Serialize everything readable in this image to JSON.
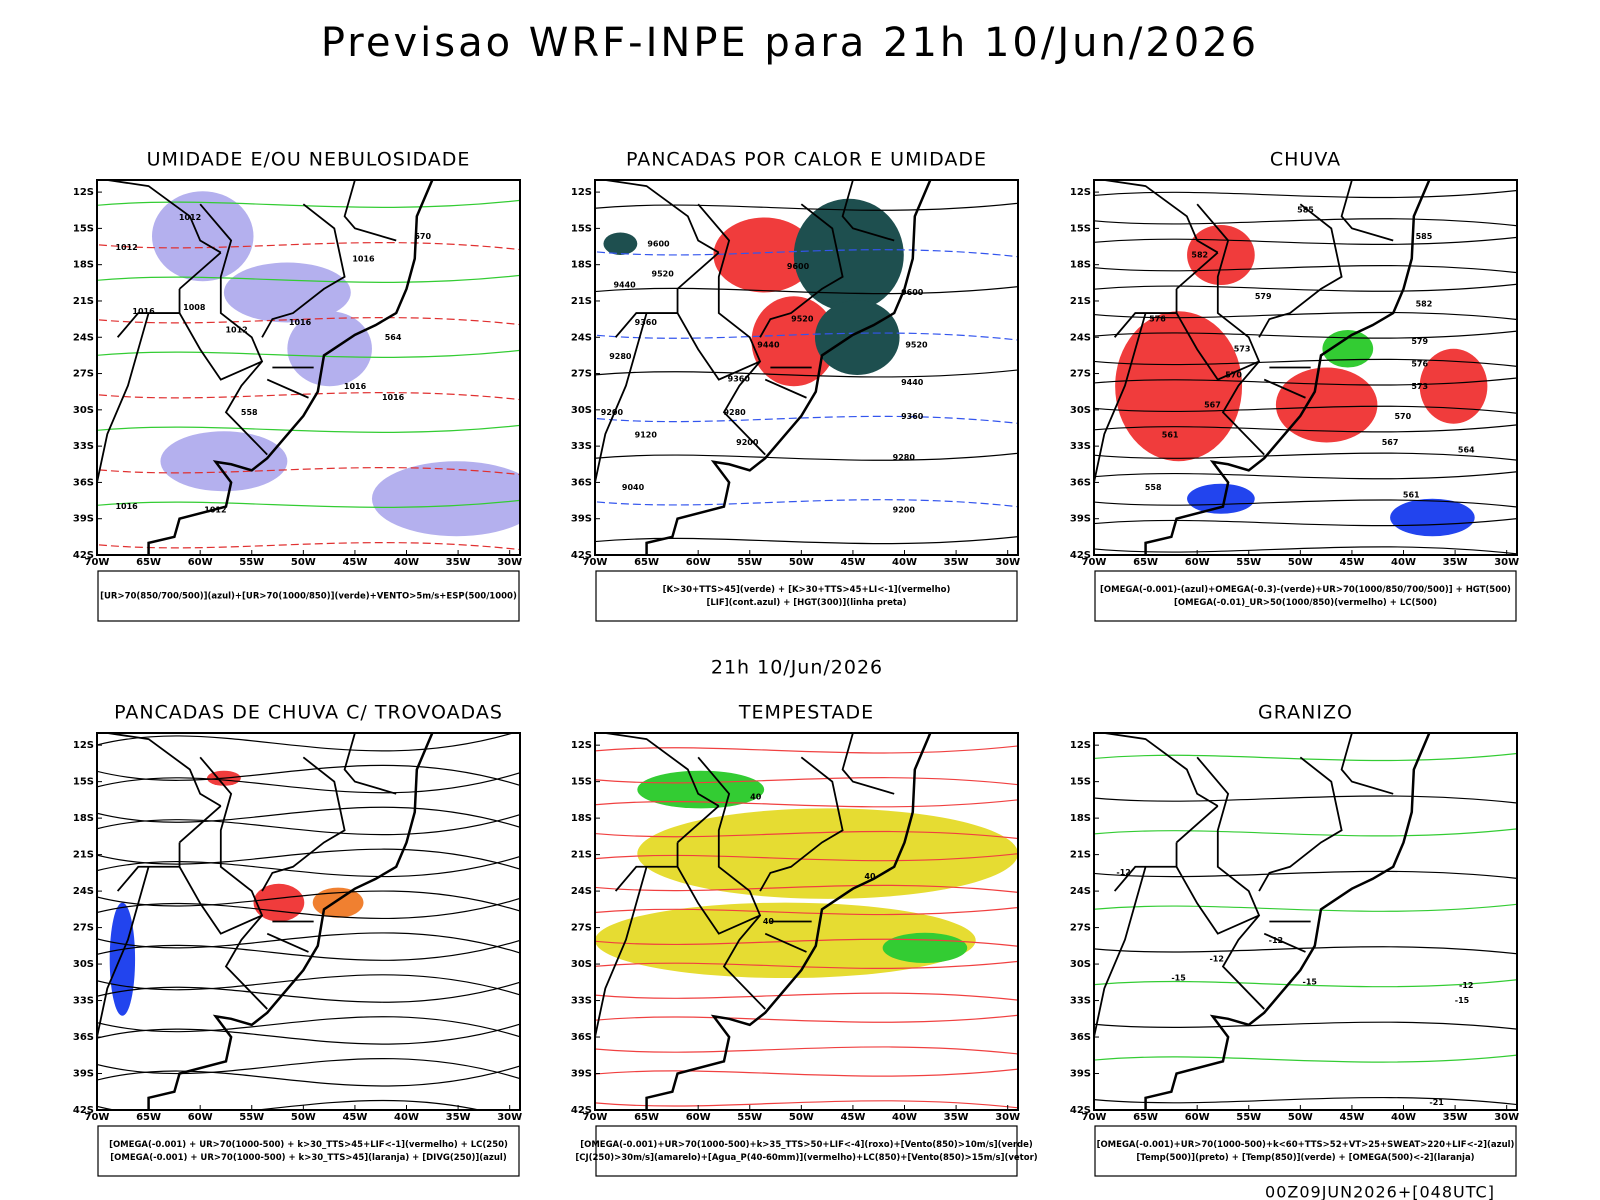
{
  "title": "Previsao WRF-INPE  para 21h 10/Jun/2026",
  "middle_label": "21h 10/Jun/2026",
  "footer": "00Z09JUN2026+[048UTC]",
  "axes": {
    "lat": [
      {
        "value": -12,
        "label": "12S"
      },
      {
        "value": -15,
        "label": "15S"
      },
      {
        "value": -18,
        "label": "18S"
      },
      {
        "value": -21,
        "label": "21S"
      },
      {
        "value": -24,
        "label": "24S"
      },
      {
        "value": -27,
        "label": "27S"
      },
      {
        "value": -30,
        "label": "30S"
      },
      {
        "value": -33,
        "label": "33S"
      },
      {
        "value": -36,
        "label": "36S"
      },
      {
        "value": -39,
        "label": "39S"
      },
      {
        "value": -42,
        "label": "42S"
      }
    ],
    "lon": [
      {
        "value": -70,
        "label": "70W"
      },
      {
        "value": -65,
        "label": "65W"
      },
      {
        "value": -60,
        "label": "60W"
      },
      {
        "value": -55,
        "label": "55W"
      },
      {
        "value": -50,
        "label": "50W"
      },
      {
        "value": -45,
        "label": "45W"
      },
      {
        "value": -40,
        "label": "40W"
      },
      {
        "value": -35,
        "label": "35W"
      },
      {
        "value": -30,
        "label": "30W"
      }
    ]
  },
  "panels": [
    {
      "title": "UMIDADE E/OU NEBULOSIDADE",
      "legend": [
        "[UR>70(850/700/500)](azul)+[UR>70(1000/850)](verde)+VENTO>5m/s+ESP(500/1000)"
      ],
      "contour_labels": [
        "1012",
        "1012",
        "1016",
        "1008",
        "1016",
        "1012",
        "1016",
        "1016",
        "1016",
        "1012",
        "1016",
        "570",
        "564",
        "558"
      ]
    },
    {
      "title": "PANCADAS POR CALOR E UMIDADE",
      "legend": [
        "[K>30+TTS>45](verde) + [K>30+TTS>45+LI<-1](vermelho)",
        "[LIF](cont.azul) + [HGT(300)](linha preta)"
      ],
      "contour_labels": [
        "9600",
        "9520",
        "9440",
        "9360",
        "9280",
        "9200",
        "9120",
        "9040",
        "9600",
        "9520",
        "9440",
        "9360",
        "9280",
        "9200",
        "9600",
        "9520",
        "9440",
        "9360",
        "9280",
        "9200"
      ]
    },
    {
      "title": "CHUVA",
      "legend": [
        "[OMEGA(-0.001)-(azul)+OMEGA(-0.3)-(verde)+UR>70(1000/850/700/500)] + HGT(500)",
        "[OMEGA(-0.01)_UR>50(1000/850)(vermelho) + LC(500)"
      ],
      "contour_labels": [
        "585",
        "582",
        "579",
        "576",
        "573",
        "570",
        "567",
        "561",
        "558",
        "585",
        "582",
        "579",
        "576",
        "573",
        "570",
        "567",
        "564",
        "561"
      ]
    },
    {
      "title": "PANCADAS DE CHUVA C/ TROVOADAS",
      "legend": [
        "[OMEGA(-0.001) + UR>70(1000-500) + k>30_TTS>45+LIF<-1](vermelho) + LC(250)",
        "[OMEGA(-0.001) + UR>70(1000-500) + k>30_TTS>45](laranja) + [DIVG(250)](azul)"
      ],
      "contour_labels": []
    },
    {
      "title": "TEMPESTADE",
      "legend": [
        "[OMEGA(-0.001)+UR>70(1000-500)+k>35_TTS>50+LIF<-4](roxo)+[Vento(850)>10m/s](verde)",
        "[CJ(250)>30m/s](amarelo)+[Agua_P(40-60mm)](vermelho)+LC(850)+[Vento(850)>15m/s](vetor)"
      ],
      "contour_labels": [
        "40",
        "40",
        "40"
      ]
    },
    {
      "title": "GRANIZO",
      "legend": [
        "[OMEGA(-0.001)+UR>70(1000-500)+k<60+TTS>52+VT>25+SWEAT>220+LIF<-2](azul)",
        "[Temp(500)](preto) + [Temp(850)](verde) + [OMEGA(500)<-2](laranja)"
      ],
      "contour_labels": [
        "-12",
        "-12",
        "-12",
        "-15",
        "-15",
        "-12",
        "-15",
        "-21"
      ]
    }
  ]
}
